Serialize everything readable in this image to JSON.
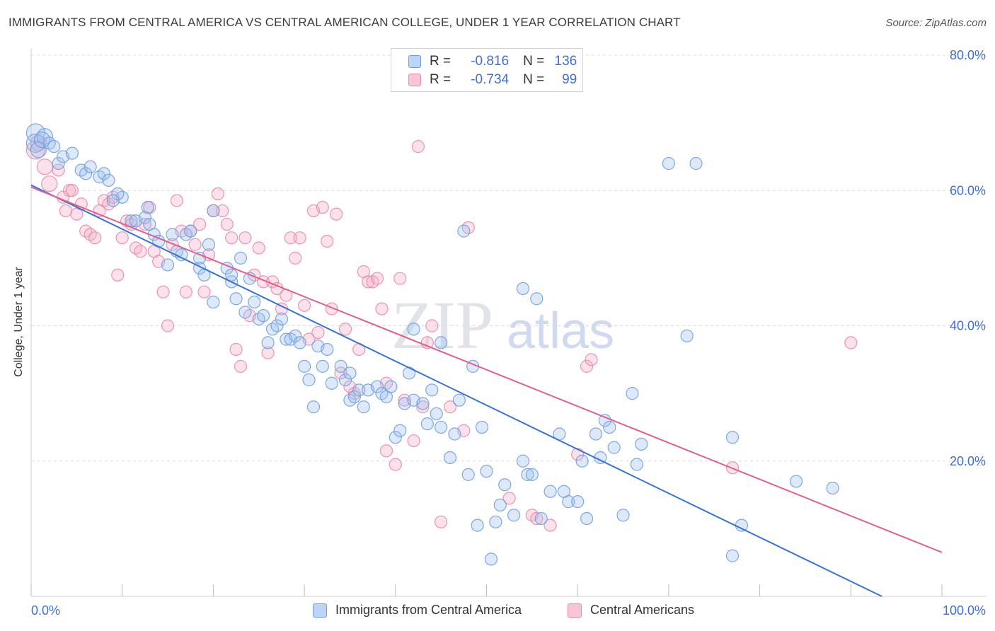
{
  "title": "IMMIGRANTS FROM CENTRAL AMERICA VS CENTRAL AMERICAN COLLEGE, UNDER 1 YEAR CORRELATION CHART",
  "source": "Source: ZipAtlas.com",
  "watermark": {
    "part1": "ZIP",
    "part2": "atlas"
  },
  "legend_top": {
    "rows": [
      {
        "r_label": "R =",
        "r_value": "-0.816",
        "n_label": "N =",
        "n_value": "136",
        "color": "#6f9fe0"
      },
      {
        "r_label": "R =",
        "r_value": "-0.734",
        "n_label": "N =",
        "n_value": "99",
        "color": "#e88aab"
      }
    ]
  },
  "legend_bottom": [
    {
      "label": "Immigrants from Central America",
      "color": "#6f9fe0"
    },
    {
      "label": "Central Americans",
      "color": "#e88aab"
    }
  ],
  "chart_data": {
    "type": "scatter",
    "title": "IMMIGRANTS FROM CENTRAL AMERICA VS CENTRAL AMERICAN COLLEGE, UNDER 1 YEAR CORRELATION CHART",
    "xlabel": "",
    "ylabel": "College, Under 1 year",
    "xlim": [
      0,
      100
    ],
    "ylim": [
      0,
      80
    ],
    "x_tick_labels": [
      "0.0%",
      "100.0%"
    ],
    "y_ticks": [
      20,
      40,
      60,
      80
    ],
    "y_tick_labels": [
      "20.0%",
      "40.0%",
      "60.0%",
      "80.0%"
    ],
    "grid": true,
    "series": [
      {
        "name": "Immigrants from Central America",
        "color": "#6f9fe0",
        "line_color": "#3673d4",
        "trend": {
          "x0": 0,
          "y0": 60.8,
          "x1": 93.4,
          "y1": 0
        },
        "points": [
          [
            0.5,
            68.5,
            3
          ],
          [
            0.5,
            67,
            3
          ],
          [
            0.8,
            66,
            2
          ],
          [
            1.5,
            68,
            2
          ],
          [
            1.2,
            67.5,
            2
          ],
          [
            2.0,
            67,
            1
          ],
          [
            2.5,
            66.5,
            1
          ],
          [
            3,
            64,
            1
          ],
          [
            3.5,
            65,
            1
          ],
          [
            4.5,
            65.5,
            1
          ],
          [
            5.5,
            63,
            1
          ],
          [
            6,
            62.5,
            1
          ],
          [
            6.5,
            63.5,
            1
          ],
          [
            7.5,
            62,
            1
          ],
          [
            8,
            62.5,
            1
          ],
          [
            8.5,
            61.5,
            1
          ],
          [
            10,
            59,
            1
          ],
          [
            9.5,
            59.5,
            1
          ],
          [
            9,
            58.5,
            1
          ],
          [
            11,
            55.5,
            1
          ],
          [
            11.5,
            55.5,
            1
          ],
          [
            12.5,
            56,
            1
          ],
          [
            12.8,
            57.5,
            1
          ],
          [
            13,
            55,
            1
          ],
          [
            13.5,
            53.5,
            1
          ],
          [
            14,
            52.5,
            1
          ],
          [
            15,
            49,
            1
          ],
          [
            15.5,
            53.5,
            1
          ],
          [
            16,
            51,
            1
          ],
          [
            16.5,
            50.5,
            1
          ],
          [
            17,
            53.5,
            1
          ],
          [
            17.5,
            54,
            1
          ],
          [
            18.5,
            50,
            1
          ],
          [
            18.5,
            48.5,
            1
          ],
          [
            19,
            47.5,
            1
          ],
          [
            19.5,
            52,
            1
          ],
          [
            20,
            43.5,
            1
          ],
          [
            20,
            57,
            1
          ],
          [
            21.5,
            48.5,
            1
          ],
          [
            22,
            46.5,
            1
          ],
          [
            22,
            47.5,
            1
          ],
          [
            22.5,
            44,
            1
          ],
          [
            23,
            50,
            1
          ],
          [
            23.5,
            42,
            1
          ],
          [
            24,
            47,
            1
          ],
          [
            24.5,
            43.5,
            1
          ],
          [
            25,
            41,
            1
          ],
          [
            25.5,
            41.5,
            1
          ],
          [
            26,
            37.5,
            1
          ],
          [
            26.5,
            39.5,
            1
          ],
          [
            27,
            40,
            1
          ],
          [
            27.5,
            41,
            1
          ],
          [
            28,
            38,
            1
          ],
          [
            28.5,
            38,
            1
          ],
          [
            29,
            38.5,
            1
          ],
          [
            29.5,
            37.5,
            1
          ],
          [
            30,
            34,
            1
          ],
          [
            30.5,
            32,
            1
          ],
          [
            31,
            28,
            1
          ],
          [
            31.5,
            37,
            1
          ],
          [
            32,
            34,
            1
          ],
          [
            32.5,
            36.5,
            1
          ],
          [
            33,
            31.5,
            1
          ],
          [
            34,
            34,
            1
          ],
          [
            34.5,
            32,
            1
          ],
          [
            35,
            33,
            1
          ],
          [
            35,
            29,
            1
          ],
          [
            35.5,
            29.5,
            1
          ],
          [
            36,
            30.5,
            1
          ],
          [
            36.5,
            28,
            1
          ],
          [
            37,
            30.5,
            1
          ],
          [
            38,
            31,
            1
          ],
          [
            38.5,
            30,
            1
          ],
          [
            39,
            29.5,
            1
          ],
          [
            39.5,
            31,
            1
          ],
          [
            40,
            23.5,
            1
          ],
          [
            40.5,
            24.5,
            1
          ],
          [
            41,
            28.5,
            1
          ],
          [
            41.5,
            33,
            1
          ],
          [
            42,
            29,
            1
          ],
          [
            42,
            39.5,
            1
          ],
          [
            43,
            28.5,
            1
          ],
          [
            43.5,
            25.5,
            1
          ],
          [
            44,
            30.5,
            1
          ],
          [
            44.5,
            27,
            1
          ],
          [
            45,
            37.5,
            1
          ],
          [
            45,
            25,
            1
          ],
          [
            46,
            20.5,
            1
          ],
          [
            46.5,
            24,
            1
          ],
          [
            47,
            29,
            1
          ],
          [
            47.5,
            54,
            1
          ],
          [
            48,
            18,
            1
          ],
          [
            48.5,
            34,
            1
          ],
          [
            49,
            10.5,
            1
          ],
          [
            49.5,
            25,
            1
          ],
          [
            50,
            18.5,
            1
          ],
          [
            50.5,
            5.5,
            1
          ],
          [
            51,
            11,
            1
          ],
          [
            51.5,
            13.5,
            1
          ],
          [
            52,
            16.5,
            1
          ],
          [
            53,
            12,
            1
          ],
          [
            54,
            20,
            1
          ],
          [
            54.5,
            18,
            1
          ],
          [
            55,
            18,
            1
          ],
          [
            54,
            45.5,
            1
          ],
          [
            55.5,
            44,
            1
          ],
          [
            56,
            11.5,
            1
          ],
          [
            57,
            15.5,
            1
          ],
          [
            58,
            24,
            1
          ],
          [
            58.5,
            15.5,
            1
          ],
          [
            59,
            14,
            1
          ],
          [
            60,
            14,
            1
          ],
          [
            60.5,
            20,
            1
          ],
          [
            61,
            11.5,
            1
          ],
          [
            62,
            24,
            1
          ],
          [
            62.5,
            20.5,
            1
          ],
          [
            63,
            26,
            1
          ],
          [
            63.5,
            25,
            1
          ],
          [
            64,
            22,
            1
          ],
          [
            65,
            12,
            1
          ],
          [
            66,
            30,
            1
          ],
          [
            66.5,
            19.5,
            1
          ],
          [
            67,
            22.5,
            1
          ],
          [
            70,
            64,
            1
          ],
          [
            73,
            64,
            1
          ],
          [
            72,
            38.5,
            1
          ],
          [
            77,
            23.5,
            1
          ],
          [
            78,
            10.5,
            1
          ],
          [
            77,
            6,
            1
          ],
          [
            84,
            17,
            1
          ],
          [
            88,
            16,
            1
          ]
        ]
      },
      {
        "name": "Central Americans",
        "color": "#e88aab",
        "line_color": "#e0608c",
        "trend": {
          "x0": 0,
          "y0": 60.5,
          "x1": 100,
          "y1": 6.5
        },
        "points": [
          [
            0.5,
            66,
            3
          ],
          [
            0.8,
            67,
            2
          ],
          [
            1.5,
            63.5,
            2
          ],
          [
            2,
            61,
            2
          ],
          [
            3,
            63,
            1
          ],
          [
            3.5,
            59,
            1
          ],
          [
            3.8,
            57,
            1
          ],
          [
            4.2,
            60,
            1
          ],
          [
            4.5,
            60,
            1
          ],
          [
            5,
            56.5,
            1
          ],
          [
            5.5,
            58,
            1
          ],
          [
            6,
            54,
            1
          ],
          [
            6.5,
            53.5,
            1
          ],
          [
            7,
            53,
            1
          ],
          [
            7.5,
            57,
            1
          ],
          [
            8,
            58.5,
            1
          ],
          [
            8.5,
            58,
            1
          ],
          [
            9,
            59,
            1
          ],
          [
            9.5,
            47.5,
            1
          ],
          [
            10,
            53,
            1
          ],
          [
            10.5,
            55.5,
            1
          ],
          [
            11,
            55,
            1
          ],
          [
            11.5,
            51.5,
            1
          ],
          [
            12,
            51,
            1
          ],
          [
            12.5,
            55,
            1
          ],
          [
            13,
            57.5,
            1
          ],
          [
            13.5,
            51,
            1
          ],
          [
            14,
            49.5,
            1
          ],
          [
            14.5,
            45,
            1
          ],
          [
            15,
            40,
            1
          ],
          [
            15.5,
            52,
            1
          ],
          [
            16,
            58.5,
            1
          ],
          [
            16.5,
            54,
            1
          ],
          [
            17,
            45,
            1
          ],
          [
            17.5,
            54,
            1
          ],
          [
            18,
            52,
            1
          ],
          [
            18.5,
            55,
            1
          ],
          [
            19,
            45,
            1
          ],
          [
            19.5,
            50.5,
            1
          ],
          [
            20,
            57,
            1
          ],
          [
            20.5,
            59.5,
            1
          ],
          [
            21,
            57,
            1
          ],
          [
            21.5,
            55,
            1
          ],
          [
            22,
            53,
            1
          ],
          [
            22.5,
            36.5,
            1
          ],
          [
            23,
            34,
            1
          ],
          [
            23.5,
            53,
            1
          ],
          [
            24,
            41.5,
            1
          ],
          [
            24.5,
            47.5,
            1
          ],
          [
            25,
            51.5,
            1
          ],
          [
            25.5,
            46.5,
            1
          ],
          [
            26,
            36,
            1
          ],
          [
            26.5,
            46.5,
            1
          ],
          [
            27,
            45.5,
            1
          ],
          [
            27.5,
            42.5,
            1
          ],
          [
            28,
            44.5,
            1
          ],
          [
            28.5,
            53,
            1
          ],
          [
            29,
            50,
            1
          ],
          [
            29.5,
            53,
            1
          ],
          [
            30,
            43,
            1
          ],
          [
            30.5,
            38,
            1
          ],
          [
            31,
            57,
            1
          ],
          [
            31.5,
            39,
            1
          ],
          [
            32,
            57.5,
            1
          ],
          [
            32.5,
            52.5,
            1
          ],
          [
            33,
            42.5,
            1
          ],
          [
            33.5,
            56.5,
            1
          ],
          [
            34,
            33,
            1
          ],
          [
            34.5,
            39.5,
            1
          ],
          [
            35,
            31,
            1
          ],
          [
            35.5,
            30,
            1
          ],
          [
            36,
            36.5,
            1
          ],
          [
            36.5,
            48,
            1
          ],
          [
            37,
            46.5,
            1
          ],
          [
            37.5,
            46.5,
            1
          ],
          [
            38,
            47,
            1
          ],
          [
            38.5,
            42.5,
            1
          ],
          [
            39,
            31.5,
            1
          ],
          [
            39,
            21.5,
            1
          ],
          [
            40,
            19.5,
            1
          ],
          [
            40.5,
            47,
            1
          ],
          [
            41,
            29,
            1
          ],
          [
            42,
            23,
            1
          ],
          [
            42.5,
            66.5,
            1
          ],
          [
            43,
            28,
            1
          ],
          [
            43.5,
            37.5,
            1
          ],
          [
            44,
            40,
            1
          ],
          [
            45,
            11,
            1
          ],
          [
            46,
            28,
            1
          ],
          [
            47.5,
            24.5,
            1
          ],
          [
            48,
            54.5,
            1
          ],
          [
            52.5,
            14.5,
            1
          ],
          [
            55,
            12,
            1
          ],
          [
            55.5,
            11.5,
            1
          ],
          [
            57,
            10.5,
            1
          ],
          [
            60,
            21,
            1
          ],
          [
            61,
            34,
            1
          ],
          [
            61.5,
            35,
            1
          ],
          [
            77,
            19,
            1
          ],
          [
            90,
            37.5,
            1
          ]
        ]
      }
    ]
  }
}
